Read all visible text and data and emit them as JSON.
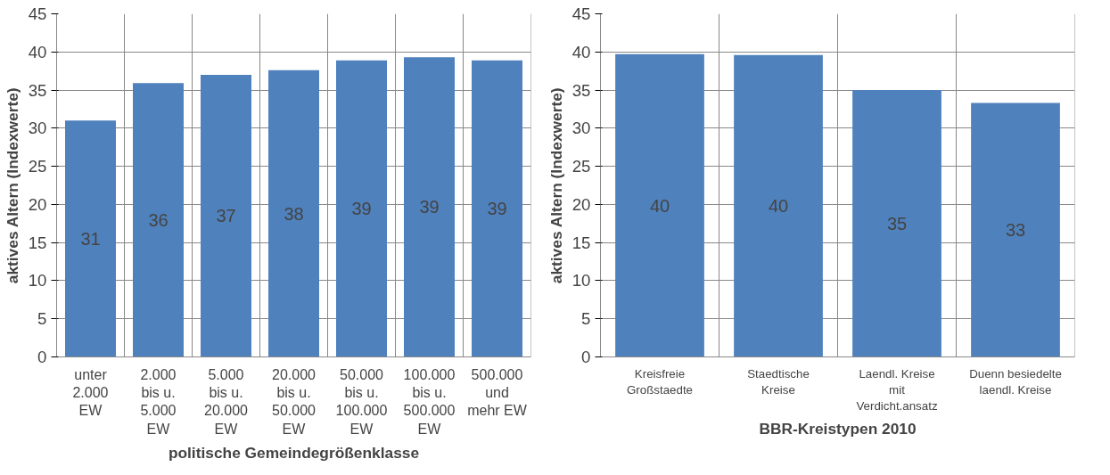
{
  "chart_data": [
    {
      "type": "bar",
      "xlabel": "politische Gemeindegrößenklasse",
      "ylabel": "aktives Altern (Indexwerte)",
      "categories": [
        "unter 2.000 EW",
        "2.000 bis u. 5.000 EW",
        "5.000 bis u. 20.000 EW",
        "20.000 bis u. 50.000 EW",
        "50.000 bis u. 100.000 EW",
        "100.000 bis u. 500.000 EW",
        "500.000 und mehr EW"
      ],
      "values": [
        31,
        35.9,
        37,
        37.6,
        38.9,
        39.3,
        38.9
      ],
      "value_labels": [
        "31",
        "36",
        "37",
        "38",
        "39",
        "39",
        "39"
      ],
      "color": "#4f81bd",
      "ylim": [
        0,
        45
      ],
      "yticks": [
        0,
        5,
        10,
        15,
        20,
        25,
        30,
        35,
        40,
        45
      ],
      "grid": true
    },
    {
      "type": "bar",
      "xlabel": "BBR-Kreistypen 2010",
      "ylabel": "aktives Altern (Indexwerte)",
      "categories": [
        "Kreisfreie Großstaedte",
        "Staedtische Kreise",
        "Laendl. Kreise mit Verdicht.ansatz",
        "Duenn besiedelte laendl. Kreise"
      ],
      "values": [
        39.7,
        39.6,
        35,
        33.3
      ],
      "value_labels": [
        "40",
        "40",
        "35",
        "33"
      ],
      "color": "#4f81bd",
      "ylim": [
        0,
        45
      ],
      "yticks": [
        0,
        5,
        10,
        15,
        20,
        25,
        30,
        35,
        40,
        45
      ],
      "grid": true
    }
  ]
}
